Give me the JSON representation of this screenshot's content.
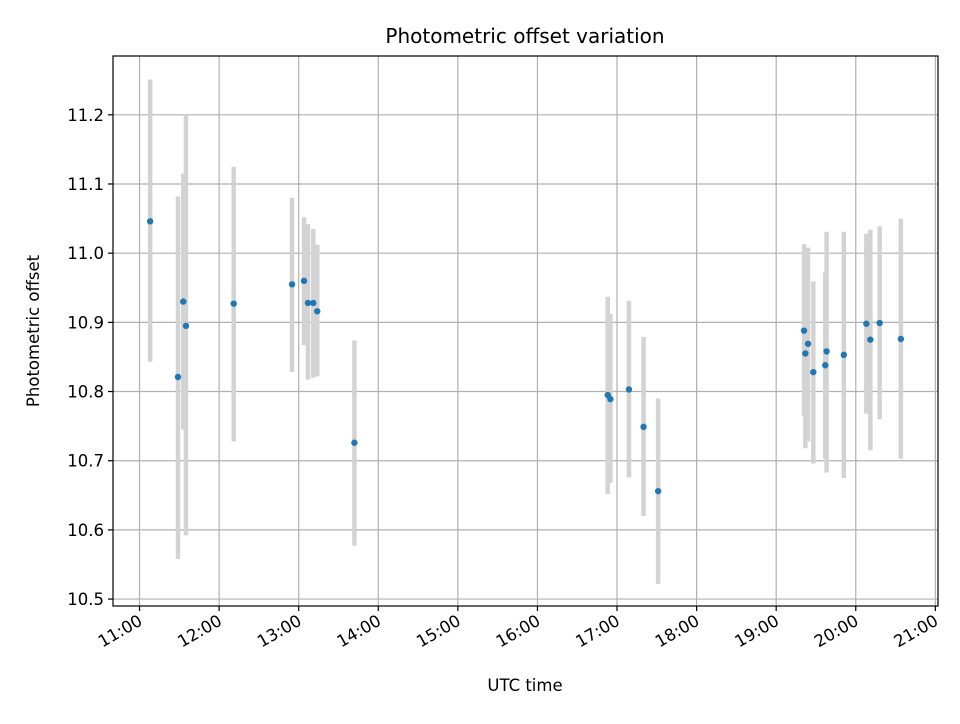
{
  "chart_data": {
    "type": "scatter",
    "title": "Photometric offset variation",
    "xlabel": "UTC time",
    "ylabel": "Photometric offset",
    "grid": true,
    "xlim": [
      "10:40",
      "21:02"
    ],
    "ylim": [
      10.49,
      11.285
    ],
    "xticks": [
      "11:00",
      "12:00",
      "13:00",
      "14:00",
      "15:00",
      "16:00",
      "17:00",
      "18:00",
      "19:00",
      "20:00",
      "21:00"
    ],
    "yticks": [
      "10.5",
      "10.6",
      "10.7",
      "10.8",
      "10.9",
      "11.0",
      "11.1",
      "11.2"
    ],
    "colors": {
      "marker": "#1f77b4",
      "errorbar": "#d3d3d3",
      "grid": "#b0b0b0"
    },
    "points": [
      {
        "time": "11:08",
        "y": 11.046,
        "low": 10.843,
        "high": 11.251
      },
      {
        "time": "11:29",
        "y": 10.821,
        "low": 10.558,
        "high": 11.082
      },
      {
        "time": "11:33",
        "y": 10.93,
        "low": 10.745,
        "high": 11.115
      },
      {
        "time": "11:35",
        "y": 10.895,
        "low": 10.592,
        "high": 11.2
      },
      {
        "time": "12:11",
        "y": 10.927,
        "low": 10.728,
        "high": 11.125
      },
      {
        "time": "12:55",
        "y": 10.955,
        "low": 10.828,
        "high": 11.08
      },
      {
        "time": "13:04",
        "y": 10.96,
        "low": 10.867,
        "high": 11.052
      },
      {
        "time": "13:07",
        "y": 10.928,
        "low": 10.817,
        "high": 11.042
      },
      {
        "time": "13:11",
        "y": 10.928,
        "low": 10.82,
        "high": 11.035
      },
      {
        "time": "13:14",
        "y": 10.916,
        "low": 10.822,
        "high": 11.012
      },
      {
        "time": "13:42",
        "y": 10.726,
        "low": 10.577,
        "high": 10.874
      },
      {
        "time": "16:53",
        "y": 10.795,
        "low": 10.652,
        "high": 10.937
      },
      {
        "time": "16:55",
        "y": 10.789,
        "low": 10.668,
        "high": 10.912
      },
      {
        "time": "17:09",
        "y": 10.803,
        "low": 10.676,
        "high": 10.931
      },
      {
        "time": "17:20",
        "y": 10.749,
        "low": 10.62,
        "high": 10.879
      },
      {
        "time": "17:31",
        "y": 10.656,
        "low": 10.522,
        "high": 10.79
      },
      {
        "time": "19:21",
        "y": 10.888,
        "low": 10.765,
        "high": 11.013
      },
      {
        "time": "19:22",
        "y": 10.855,
        "low": 10.718,
        "high": 10.99
      },
      {
        "time": "19:24",
        "y": 10.869,
        "low": 10.728,
        "high": 11.008
      },
      {
        "time": "19:28",
        "y": 10.828,
        "low": 10.696,
        "high": 10.959
      },
      {
        "time": "19:37",
        "y": 10.838,
        "low": 10.703,
        "high": 10.972
      },
      {
        "time": "19:38",
        "y": 10.858,
        "low": 10.683,
        "high": 11.031
      },
      {
        "time": "19:51",
        "y": 10.853,
        "low": 10.675,
        "high": 11.031
      },
      {
        "time": "20:08",
        "y": 10.898,
        "low": 10.768,
        "high": 11.028
      },
      {
        "time": "20:11",
        "y": 10.875,
        "low": 10.715,
        "high": 11.034
      },
      {
        "time": "20:18",
        "y": 10.899,
        "low": 10.76,
        "high": 11.039
      },
      {
        "time": "20:34",
        "y": 10.876,
        "low": 10.703,
        "high": 11.05
      }
    ]
  }
}
